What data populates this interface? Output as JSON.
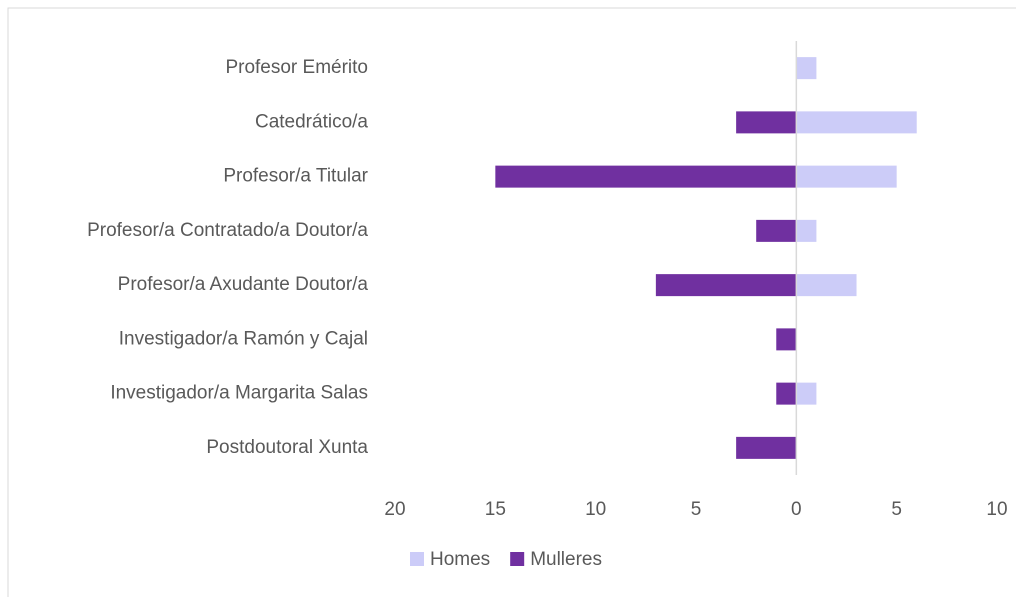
{
  "chart_data": {
    "type": "bar",
    "orientation": "horizontal",
    "categories": [
      "Profesor Emérito",
      "Catedrático/a",
      "Profesor/a Titular",
      "Profesor/a Contratado/a Doutor/a",
      "Profesor/a Axudante Doutor/a",
      "Investigador/a Ramón y Cajal",
      "Investigador/a Margarita Salas",
      "Postdoutoral Xunta"
    ],
    "series": [
      {
        "name": "Homes",
        "color": "#ccccf8",
        "values": [
          1,
          6,
          5,
          1,
          3,
          0,
          1,
          0
        ]
      },
      {
        "name": "Mulleres",
        "color": "#7030a0",
        "values": [
          0,
          -3,
          -15,
          -2,
          -7,
          -1,
          -1,
          -3
        ]
      }
    ],
    "xlim": [
      -20,
      10
    ],
    "xticks": [
      {
        "value": -20,
        "label": "20"
      },
      {
        "value": -15,
        "label": "15"
      },
      {
        "value": -10,
        "label": "10"
      },
      {
        "value": -5,
        "label": "5"
      },
      0,
      5,
      10
    ],
    "legend": "bottom"
  }
}
